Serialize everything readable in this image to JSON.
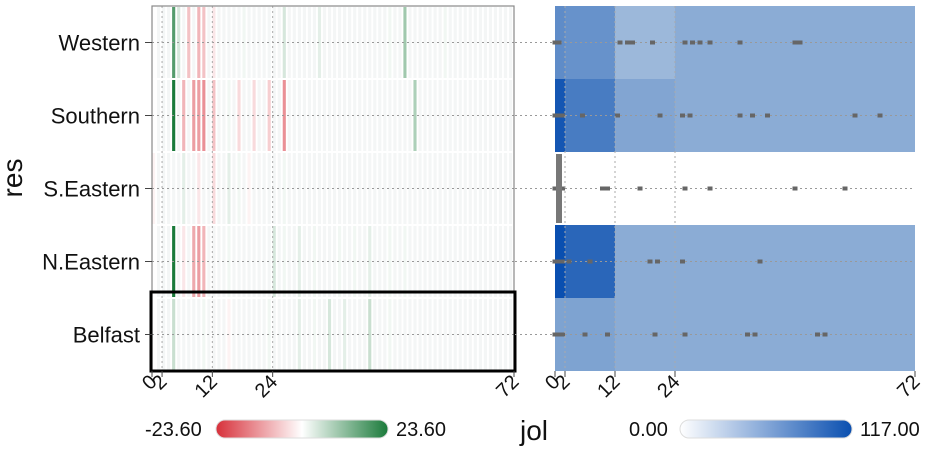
{
  "chart_data": {
    "type": "heatmap",
    "ylabel": "res",
    "xlabel": "jol",
    "rows": [
      "Western",
      "Southern",
      "S.Eastern",
      "N.Eastern",
      "Belfast"
    ],
    "selected_row": "Belfast",
    "x_range": [
      0,
      72
    ],
    "x_ticks": [
      0,
      2,
      12,
      24,
      72
    ],
    "diverging_legend": {
      "min_label": "-23.60",
      "max_label": "23.60",
      "min": -23.6,
      "max": 23.6,
      "colors": [
        "#d7303a",
        "#ffffff",
        "#1a7a3a"
      ]
    },
    "sequential_legend": {
      "min_label": "0.00",
      "max_label": "117.00",
      "min": 0,
      "max": 117,
      "colors": [
        "#ffffff",
        "#0a4fb0"
      ]
    },
    "left_panel_cells": [
      [
        0.1,
        0,
        0,
        0,
        12.5,
        3,
        0,
        -5,
        0,
        -6,
        -5,
        0,
        -2,
        0,
        0,
        0,
        0,
        0,
        1,
        0,
        0,
        0,
        0,
        0,
        0,
        0,
        3,
        0,
        0,
        0,
        0,
        0,
        0,
        2,
        0,
        0,
        0,
        0,
        0,
        0,
        0,
        0,
        0,
        0,
        0,
        0,
        0,
        1,
        0,
        0,
        7,
        0,
        0,
        0,
        0,
        0,
        0,
        0,
        1,
        0,
        0,
        0,
        0,
        0,
        0,
        0,
        0,
        0,
        0,
        0,
        0,
        0
      ],
      [
        0.1,
        0,
        0,
        0,
        20,
        0,
        -6,
        0,
        -8,
        -8,
        -9,
        0,
        -5,
        0,
        0,
        1,
        0,
        -3,
        0,
        0,
        -3,
        0,
        0,
        -4,
        0,
        0,
        -9,
        0,
        0,
        0,
        0,
        0,
        0,
        0,
        0,
        0,
        0,
        0,
        0,
        0,
        0,
        0,
        0,
        0,
        0,
        0,
        0,
        0,
        0,
        0,
        0,
        0,
        6,
        0,
        0,
        0,
        0,
        0,
        0,
        0,
        0,
        0,
        0,
        0,
        0,
        0,
        0,
        0,
        0,
        0,
        0,
        0
      ],
      [
        -1,
        0,
        0,
        0,
        0,
        0,
        2,
        0,
        0,
        -2,
        0,
        0,
        -3,
        0,
        0,
        2,
        0,
        1,
        0,
        -1,
        0,
        0,
        0,
        0,
        0,
        0,
        1,
        0,
        0,
        0,
        0,
        0,
        0,
        0,
        0,
        0,
        0,
        0,
        0,
        0,
        0,
        0,
        0,
        0,
        0,
        0,
        0,
        0,
        0,
        0,
        0,
        0,
        0,
        0,
        0,
        0,
        0,
        0,
        0,
        0,
        0,
        0,
        0,
        0,
        0,
        0,
        0,
        0,
        0,
        0,
        0,
        0
      ],
      [
        0.1,
        0,
        0,
        0,
        18,
        0,
        -2,
        0,
        -7,
        -8,
        -6,
        0,
        0,
        0,
        0,
        1,
        0,
        0,
        0,
        0,
        0,
        0,
        0,
        0,
        3,
        0,
        1,
        0,
        0,
        2,
        0,
        0,
        1,
        0,
        0,
        0,
        0,
        1,
        0,
        0,
        1,
        0,
        0,
        2,
        0,
        0,
        0,
        1,
        0,
        0,
        1,
        0,
        0,
        0,
        0,
        0,
        0,
        0,
        0,
        0,
        0,
        0,
        0,
        0,
        0,
        0,
        0,
        0,
        0,
        0,
        0,
        0
      ],
      [
        0.1,
        0,
        0,
        0,
        4,
        0,
        0,
        0,
        0,
        0,
        1,
        0,
        0,
        0,
        0,
        -1,
        0,
        0,
        0,
        0,
        0,
        0,
        0,
        1,
        0,
        0,
        0,
        0,
        0,
        2,
        0,
        0,
        1,
        0,
        0,
        3,
        0,
        0,
        2,
        0,
        0,
        0,
        0,
        4,
        0,
        0,
        0,
        1,
        0,
        0,
        0,
        0,
        0,
        0,
        0,
        0,
        0,
        0,
        0,
        0,
        0,
        0,
        0,
        0,
        0,
        0,
        0,
        0,
        0,
        0,
        0,
        0
      ]
    ],
    "right_panel_bands": [
      [
        {
          "x0": 0,
          "x1": 2,
          "value": 60
        },
        {
          "x0": 2,
          "x1": 12,
          "value": 55
        },
        {
          "x0": 12,
          "x1": 24,
          "value": 22
        },
        {
          "x0": 24,
          "x1": 72,
          "value": 32
        }
      ],
      [
        {
          "x0": 0,
          "x1": 2,
          "value": 110
        },
        {
          "x0": 2,
          "x1": 12,
          "value": 75
        },
        {
          "x0": 12,
          "x1": 24,
          "value": 38
        },
        {
          "x0": 24,
          "x1": 72,
          "value": 32
        }
      ],
      [
        {
          "x0": 0,
          "x1": 2,
          "value": 0
        },
        {
          "x0": 2,
          "x1": 12,
          "value": 0
        },
        {
          "x0": 12,
          "x1": 24,
          "value": 0
        },
        {
          "x0": 24,
          "x1": 72,
          "value": 0
        }
      ],
      [
        {
          "x0": 0,
          "x1": 2,
          "value": 117
        },
        {
          "x0": 2,
          "x1": 12,
          "value": 95
        },
        {
          "x0": 12,
          "x1": 24,
          "value": 32
        },
        {
          "x0": 24,
          "x1": 72,
          "value": 32
        }
      ],
      [
        {
          "x0": 0,
          "x1": 2,
          "value": 40
        },
        {
          "x0": 2,
          "x1": 12,
          "value": 40
        },
        {
          "x0": 12,
          "x1": 24,
          "value": 32
        },
        {
          "x0": 24,
          "x1": 72,
          "value": 32
        }
      ]
    ],
    "right_panel_ticks": [
      [
        0.3,
        0.8,
        13,
        14.5,
        15.5,
        19.5,
        26,
        27.5,
        29,
        31,
        37,
        48,
        49
      ],
      [
        0.3,
        0.8,
        1.5,
        5.5,
        12.5,
        21,
        25.5,
        27,
        37,
        39.5,
        42.5,
        60,
        65
      ],
      [
        0.3,
        0.8,
        1.5,
        9.5,
        10.5,
        17,
        26,
        31,
        48,
        58
      ],
      [
        0.3,
        1.5,
        2.8,
        7,
        19,
        20.5,
        25.5,
        41
      ],
      [
        0.3,
        1.5,
        6,
        10.5,
        20,
        26,
        38.5,
        40,
        52.5,
        54
      ]
    ]
  }
}
